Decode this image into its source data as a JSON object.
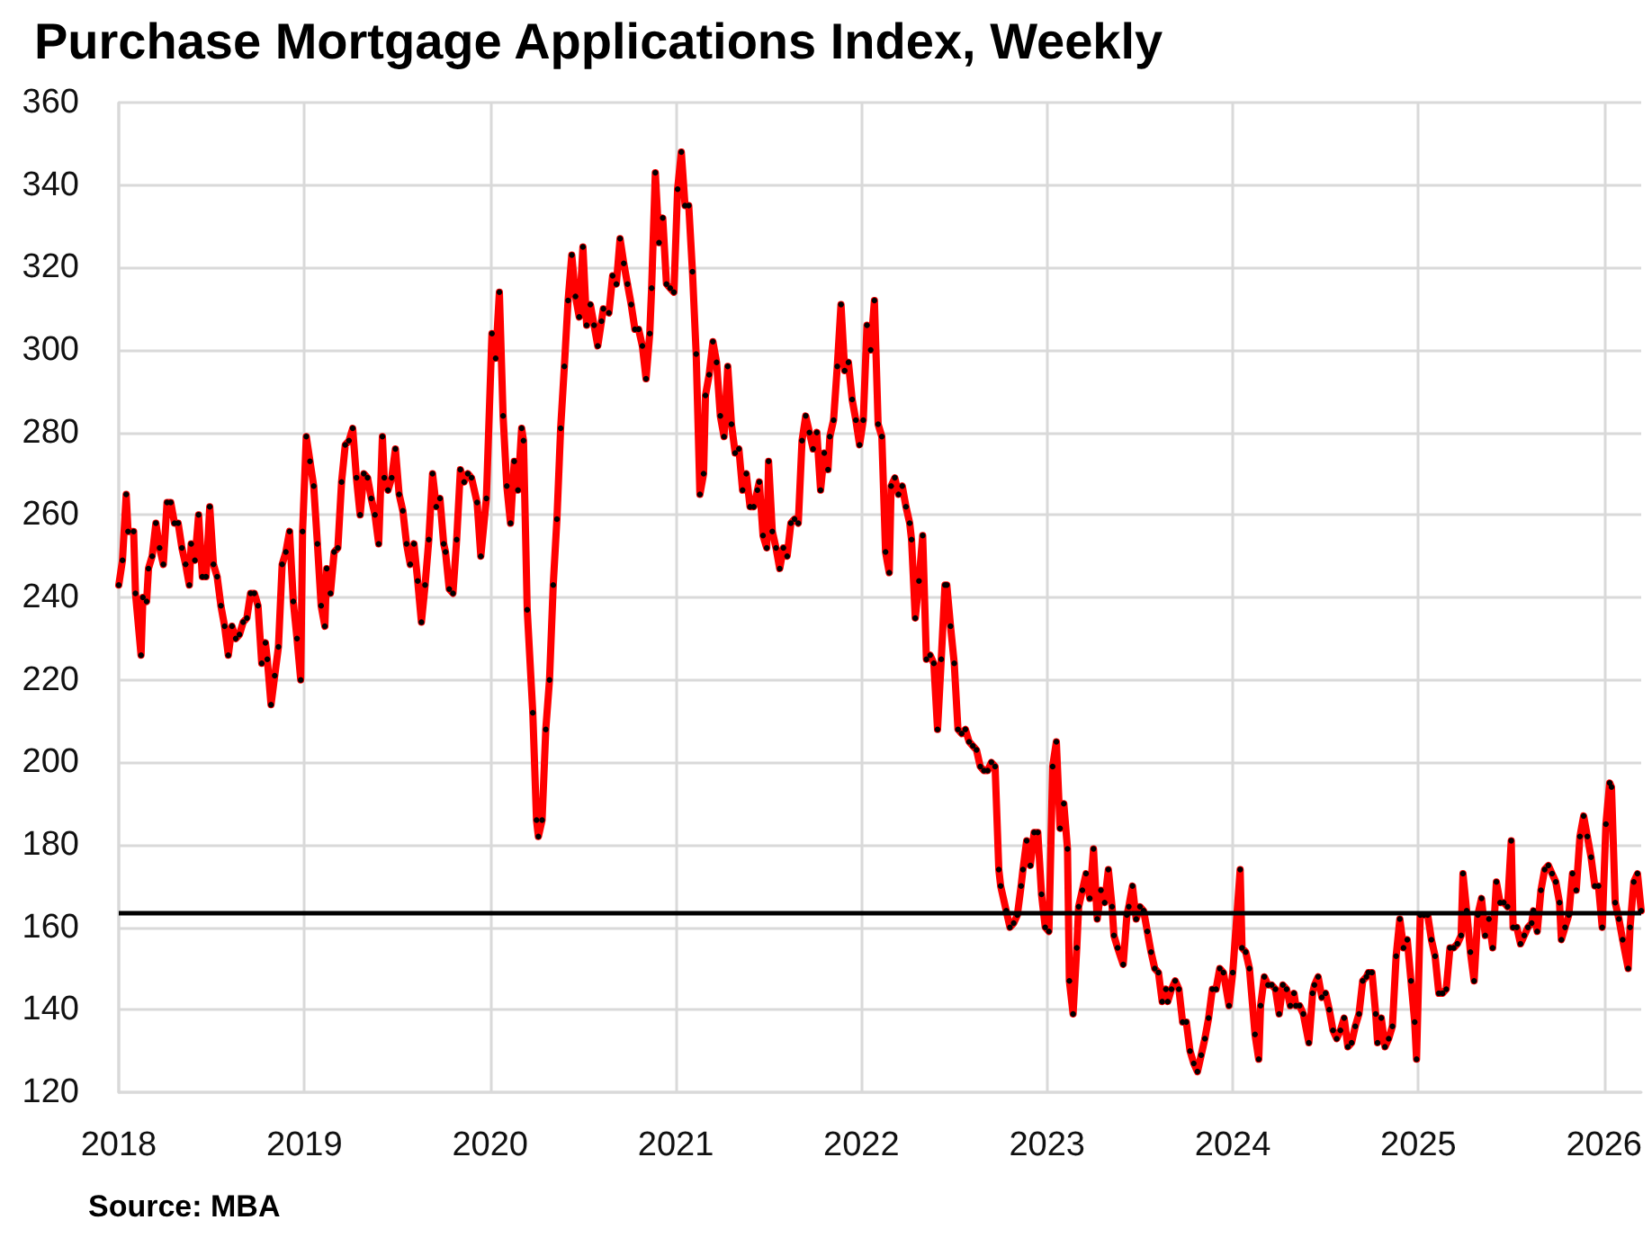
{
  "chart_data": {
    "type": "line",
    "title": "Purchase Mortgage Applications Index, Weekly",
    "annotations": [
      "Source: MBA"
    ],
    "x": [
      2018.0,
      2018.02,
      2018.04,
      2018.05,
      2018.08,
      2018.09,
      2018.12,
      2018.13,
      2018.15,
      2018.16,
      2018.18,
      2018.2,
      2018.22,
      2018.24,
      2018.26,
      2018.28,
      2018.3,
      2018.32,
      2018.34,
      2018.36,
      2018.38,
      2018.39,
      2018.41,
      2018.43,
      2018.45,
      2018.47,
      2018.49,
      2018.51,
      2018.53,
      2018.55,
      2018.57,
      2018.59,
      2018.61,
      2018.63,
      2018.65,
      2018.67,
      2018.69,
      2018.71,
      2018.73,
      2018.75,
      2018.77,
      2018.79,
      2018.8,
      2018.82,
      2018.84,
      2018.86,
      2018.88,
      2018.9,
      2018.92,
      2018.94,
      2018.96,
      2018.98,
      2018.99,
      2019.01,
      2019.03,
      2019.05,
      2019.07,
      2019.09,
      2019.11,
      2019.12,
      2019.14,
      2019.16,
      2019.18,
      2019.2,
      2019.22,
      2019.24,
      2019.26,
      2019.28,
      2019.3,
      2019.32,
      2019.34,
      2019.36,
      2019.38,
      2019.4,
      2019.42,
      2019.43,
      2019.45,
      2019.47,
      2019.49,
      2019.51,
      2019.53,
      2019.55,
      2019.57,
      2019.59,
      2019.61,
      2019.63,
      2019.65,
      2019.67,
      2019.69,
      2019.71,
      2019.73,
      2019.75,
      2019.76,
      2019.78,
      2019.8,
      2019.82,
      2019.84,
      2019.86,
      2019.88,
      2019.9,
      2019.93,
      2019.95,
      2019.98,
      2020.01,
      2020.03,
      2020.05,
      2020.07,
      2020.09,
      2020.11,
      2020.13,
      2020.15,
      2020.17,
      2020.18,
      2020.2,
      2020.23,
      2020.25,
      2020.26,
      2020.28,
      2020.3,
      2020.32,
      2020.34,
      2020.36,
      2020.38,
      2020.4,
      2020.42,
      2020.44,
      2020.46,
      2020.48,
      2020.5,
      2020.52,
      2020.54,
      2020.56,
      2020.58,
      2020.6,
      2020.61,
      2020.64,
      2020.66,
      2020.68,
      2020.7,
      2020.72,
      2020.74,
      2020.76,
      2020.78,
      2020.8,
      2020.82,
      2020.84,
      2020.86,
      2020.87,
      2020.89,
      2020.91,
      2020.93,
      2020.95,
      2020.97,
      2020.99,
      2021.01,
      2021.03,
      2021.05,
      2021.07,
      2021.09,
      2021.11,
      2021.13,
      2021.15,
      2021.16,
      2021.18,
      2021.2,
      2021.22,
      2021.24,
      2021.26,
      2021.28,
      2021.3,
      2021.32,
      2021.34,
      2021.36,
      2021.38,
      2021.4,
      2021.42,
      2021.44,
      2021.45,
      2021.47,
      2021.49,
      2021.5,
      2021.52,
      2021.54,
      2021.56,
      2021.58,
      2021.6,
      2021.62,
      2021.64,
      2021.66,
      2021.68,
      2021.7,
      2021.72,
      2021.74,
      2021.76,
      2021.78,
      2021.8,
      2021.82,
      2021.83,
      2021.85,
      2021.87,
      2021.89,
      2021.91,
      2021.93,
      2021.95,
      2021.97,
      2021.99,
      2022.01,
      2022.03,
      2022.05,
      2022.07,
      2022.09,
      2022.11,
      2022.13,
      2022.15,
      2022.16,
      2022.18,
      2022.2,
      2022.22,
      2022.24,
      2022.26,
      2022.27,
      2022.29,
      2022.31,
      2022.33,
      2022.35,
      2022.37,
      2022.39,
      2022.41,
      2022.43,
      2022.45,
      2022.46,
      2022.48,
      2022.5,
      2022.52,
      2022.54,
      2022.56,
      2022.58,
      2022.6,
      2022.62,
      2022.64,
      2022.66,
      2022.68,
      2022.7,
      2022.72,
      2022.74,
      2022.75,
      2022.78,
      2022.8,
      2022.82,
      2022.84,
      2022.86,
      2022.87,
      2022.89,
      2022.91,
      2022.93,
      2022.95,
      2022.97,
      2022.99,
      2023.01,
      2023.03,
      2023.05,
      2023.07,
      2023.09,
      2023.11,
      2023.12,
      2023.14,
      2023.16,
      2023.17,
      2023.19,
      2023.21,
      2023.23,
      2023.25,
      2023.27,
      2023.29,
      2023.31,
      2023.33,
      2023.35,
      2023.36,
      2023.38,
      2023.41,
      2023.43,
      2023.44,
      2023.46,
      2023.48,
      2023.5,
      2023.52,
      2023.54,
      2023.56,
      2023.58,
      2023.6,
      2023.62,
      2023.64,
      2023.65,
      2023.67,
      2023.69,
      2023.71,
      2023.73,
      2023.75,
      2023.77,
      2023.79,
      2023.81,
      2023.83,
      2023.85,
      2023.87,
      2023.89,
      2023.91,
      2023.93,
      2023.95,
      2023.98,
      2024.0,
      2024.04,
      2024.05,
      2024.07,
      2024.09,
      2024.12,
      2024.14,
      2024.15,
      2024.17,
      2024.19,
      2024.21,
      2024.23,
      2024.25,
      2024.27,
      2024.29,
      2024.31,
      2024.33,
      2024.34,
      2024.36,
      2024.38,
      2024.41,
      2024.43,
      2024.44,
      2024.46,
      2024.48,
      2024.5,
      2024.52,
      2024.54,
      2024.56,
      2024.58,
      2024.6,
      2024.62,
      2024.64,
      2024.66,
      2024.68,
      2024.7,
      2024.72,
      2024.73,
      2024.75,
      2024.77,
      2024.78,
      2024.8,
      2024.82,
      2024.84,
      2024.86,
      2024.88,
      2024.9,
      2024.92,
      2024.94,
      2024.96,
      2024.98,
      2024.99,
      2025.01,
      2025.03,
      2025.05,
      2025.07,
      2025.09,
      2025.11,
      2025.13,
      2025.15,
      2025.17,
      2025.19,
      2025.21,
      2025.23,
      2025.24,
      2025.26,
      2025.28,
      2025.3,
      2025.32,
      2025.34,
      2025.36,
      2025.38,
      2025.4,
      2025.42,
      2025.44,
      2025.46,
      2025.48,
      2025.5,
      2025.51,
      2025.53,
      2025.55,
      2025.57,
      2025.59,
      2025.61,
      2025.62,
      2025.64,
      2025.66,
      2025.68,
      2025.7,
      2025.72,
      2025.74,
      2025.76,
      2025.77,
      2025.79,
      2025.81,
      2025.83,
      2025.85,
      2025.87,
      2025.89,
      2025.91,
      2025.93,
      2025.95,
      2025.97,
      2025.99,
      2026.01,
      2026.03,
      2026.04,
      2026.06,
      2026.08,
      2026.1,
      2026.13,
      2026.14,
      2026.16,
      2026.18,
      2026.2
    ],
    "series": [
      {
        "color": "#ff0000",
        "values": [
          243,
          249,
          265,
          256,
          256,
          241,
          226,
          240,
          239,
          247,
          250,
          258,
          252,
          248,
          263,
          263,
          258,
          258,
          252,
          248,
          243,
          253,
          249,
          260,
          245,
          245,
          262,
          248,
          245,
          238,
          233,
          226,
          233,
          230,
          231,
          234,
          235,
          241,
          241,
          238,
          224,
          229,
          225,
          214,
          221,
          228,
          248,
          251,
          256,
          239,
          230,
          220,
          256,
          279,
          273,
          267,
          253,
          238,
          233,
          247,
          241,
          251,
          252,
          268,
          277,
          278,
          281,
          269,
          260,
          270,
          269,
          264,
          260,
          253,
          279,
          269,
          266,
          269,
          276,
          265,
          261,
          253,
          248,
          253,
          244,
          234,
          243,
          254,
          270,
          262,
          264,
          253,
          251,
          242,
          241,
          254,
          271,
          268,
          270,
          269,
          263,
          250,
          264,
          304,
          298,
          314,
          284,
          267,
          258,
          273,
          266,
          281,
          278,
          237,
          212,
          186,
          182,
          186,
          208,
          220,
          243,
          259,
          281,
          296,
          312,
          323,
          313,
          308,
          325,
          306,
          311,
          306,
          301,
          307,
          310,
          309,
          318,
          316,
          327,
          321,
          316,
          311,
          305,
          305,
          301,
          293,
          304,
          315,
          343,
          326,
          332,
          316,
          315,
          314,
          339,
          348,
          335,
          335,
          319,
          299,
          265,
          270,
          289,
          294,
          302,
          297,
          284,
          279,
          296,
          282,
          275,
          276,
          266,
          270,
          262,
          262,
          266,
          268,
          255,
          252,
          273,
          256,
          252,
          247,
          252,
          250,
          258,
          259,
          258,
          278,
          284,
          280,
          276,
          280,
          266,
          275,
          271,
          279,
          283,
          296,
          311,
          295,
          297,
          288,
          283,
          277,
          283,
          306,
          300,
          312,
          282,
          279,
          251,
          246,
          267,
          269,
          265,
          267,
          262,
          258,
          254,
          235,
          244,
          255,
          225,
          226,
          224,
          208,
          225,
          243,
          243,
          233,
          224,
          208,
          207,
          208,
          205,
          204,
          203,
          199,
          198,
          198,
          200,
          199,
          174,
          170,
          164,
          160,
          161,
          163,
          170,
          174,
          181,
          175,
          183,
          183,
          168,
          160,
          159,
          199,
          205,
          184,
          190,
          179,
          147,
          139,
          155,
          165,
          169,
          173,
          167,
          179,
          162,
          169,
          166,
          174,
          165,
          158,
          155,
          151,
          163,
          165,
          170,
          162,
          165,
          164,
          159,
          154,
          150,
          149,
          142,
          145,
          142,
          145,
          147,
          145,
          137,
          137,
          130,
          127,
          125,
          129,
          133,
          138,
          145,
          145,
          150,
          149,
          141,
          149,
          174,
          155,
          154,
          150,
          134,
          128,
          141,
          148,
          146,
          146,
          145,
          139,
          146,
          145,
          141,
          144,
          141,
          141,
          139,
          132,
          144,
          146,
          148,
          143,
          144,
          140,
          135,
          133,
          135,
          138,
          131,
          132,
          136,
          139,
          147,
          148,
          149,
          149,
          139,
          132,
          138,
          131,
          133,
          136,
          153,
          162,
          155,
          157,
          147,
          137,
          128,
          163,
          163,
          163,
          157,
          153,
          144,
          144,
          145,
          155,
          155,
          156,
          158,
          173,
          164,
          154,
          147,
          163,
          167,
          158,
          162,
          155,
          171,
          166,
          166,
          165,
          181,
          160,
          160,
          156,
          158,
          160,
          161,
          164,
          159,
          169,
          174,
          175,
          173,
          171,
          166,
          157,
          160,
          163,
          173,
          169,
          182,
          187,
          182,
          177,
          170,
          170,
          160,
          185,
          195,
          194,
          166,
          162,
          157,
          150,
          160,
          171,
          173,
          164
        ]
      }
    ],
    "xlim": [
      2018,
      2026.2
    ],
    "xticks": [
      2018,
      2019,
      2020,
      2021,
      2022,
      2023,
      2024,
      2025,
      2026
    ],
    "ylim": [
      120,
      360
    ],
    "yticks": [
      120,
      140,
      160,
      180,
      200,
      220,
      240,
      260,
      280,
      300,
      320,
      340,
      360
    ],
    "ref_lines": [
      {
        "axis": "y",
        "value": 163.5,
        "color": "#000000"
      }
    ],
    "grid": true,
    "marker": "circle",
    "line_style": "solid"
  }
}
